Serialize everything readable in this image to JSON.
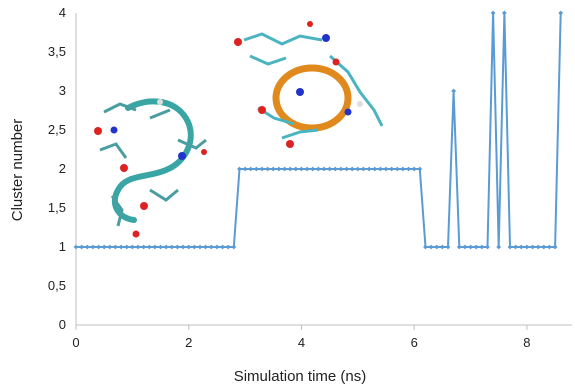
{
  "chart_data": {
    "type": "line",
    "xlabel": "Simulation time (ns)",
    "ylabel": "Cluster number",
    "xlim": [
      0,
      8.8
    ],
    "ylim": [
      0,
      4
    ],
    "x_ticks": [
      0,
      2,
      4,
      6,
      8
    ],
    "x_tick_labels": [
      "0",
      "2",
      "4",
      "6",
      "8"
    ],
    "y_ticks": [
      0,
      0.5,
      1,
      1.5,
      2,
      2.5,
      3,
      3.5,
      4
    ],
    "y_tick_labels": [
      "0",
      "0,5",
      "1",
      "1,5",
      "2",
      "2,5",
      "3",
      "3,5",
      "4"
    ],
    "grid": false,
    "legend": "none",
    "series": [
      {
        "color": "#5b9bd5",
        "marker": "diamond",
        "segments": [
          {
            "x_start": 0.0,
            "x_end": 2.8,
            "step": 0.1,
            "y": 1
          },
          {
            "x_start": 2.9,
            "x_end": 6.1,
            "step": 0.1,
            "y": 2
          },
          {
            "x_start": 6.2,
            "x_end": 6.6,
            "step": 0.1,
            "y": 1
          },
          {
            "x_start": 6.7,
            "x_end": 6.7,
            "step": 0.1,
            "y": 3
          },
          {
            "x_start": 6.8,
            "x_end": 7.3,
            "step": 0.1,
            "y": 1
          },
          {
            "x_start": 7.4,
            "x_end": 7.4,
            "step": 0.1,
            "y": 4
          },
          {
            "x_start": 7.5,
            "x_end": 7.5,
            "step": 0.1,
            "y": 1
          },
          {
            "x_start": 7.6,
            "x_end": 7.6,
            "step": 0.1,
            "y": 4
          },
          {
            "x_start": 7.7,
            "x_end": 8.5,
            "step": 0.1,
            "y": 1
          },
          {
            "x_start": 8.6,
            "x_end": 8.6,
            "step": 0.1,
            "y": 4
          }
        ]
      }
    ],
    "annotations": [
      {
        "type": "image",
        "subject": "molecular structure (stick and ribbon model)",
        "near_time_ns": 1.8,
        "near_value": 1.9
      },
      {
        "type": "image",
        "subject": "molecular structure (stick and ribbon model)",
        "near_time_ns": 4.7,
        "near_value": 3.1
      }
    ]
  }
}
